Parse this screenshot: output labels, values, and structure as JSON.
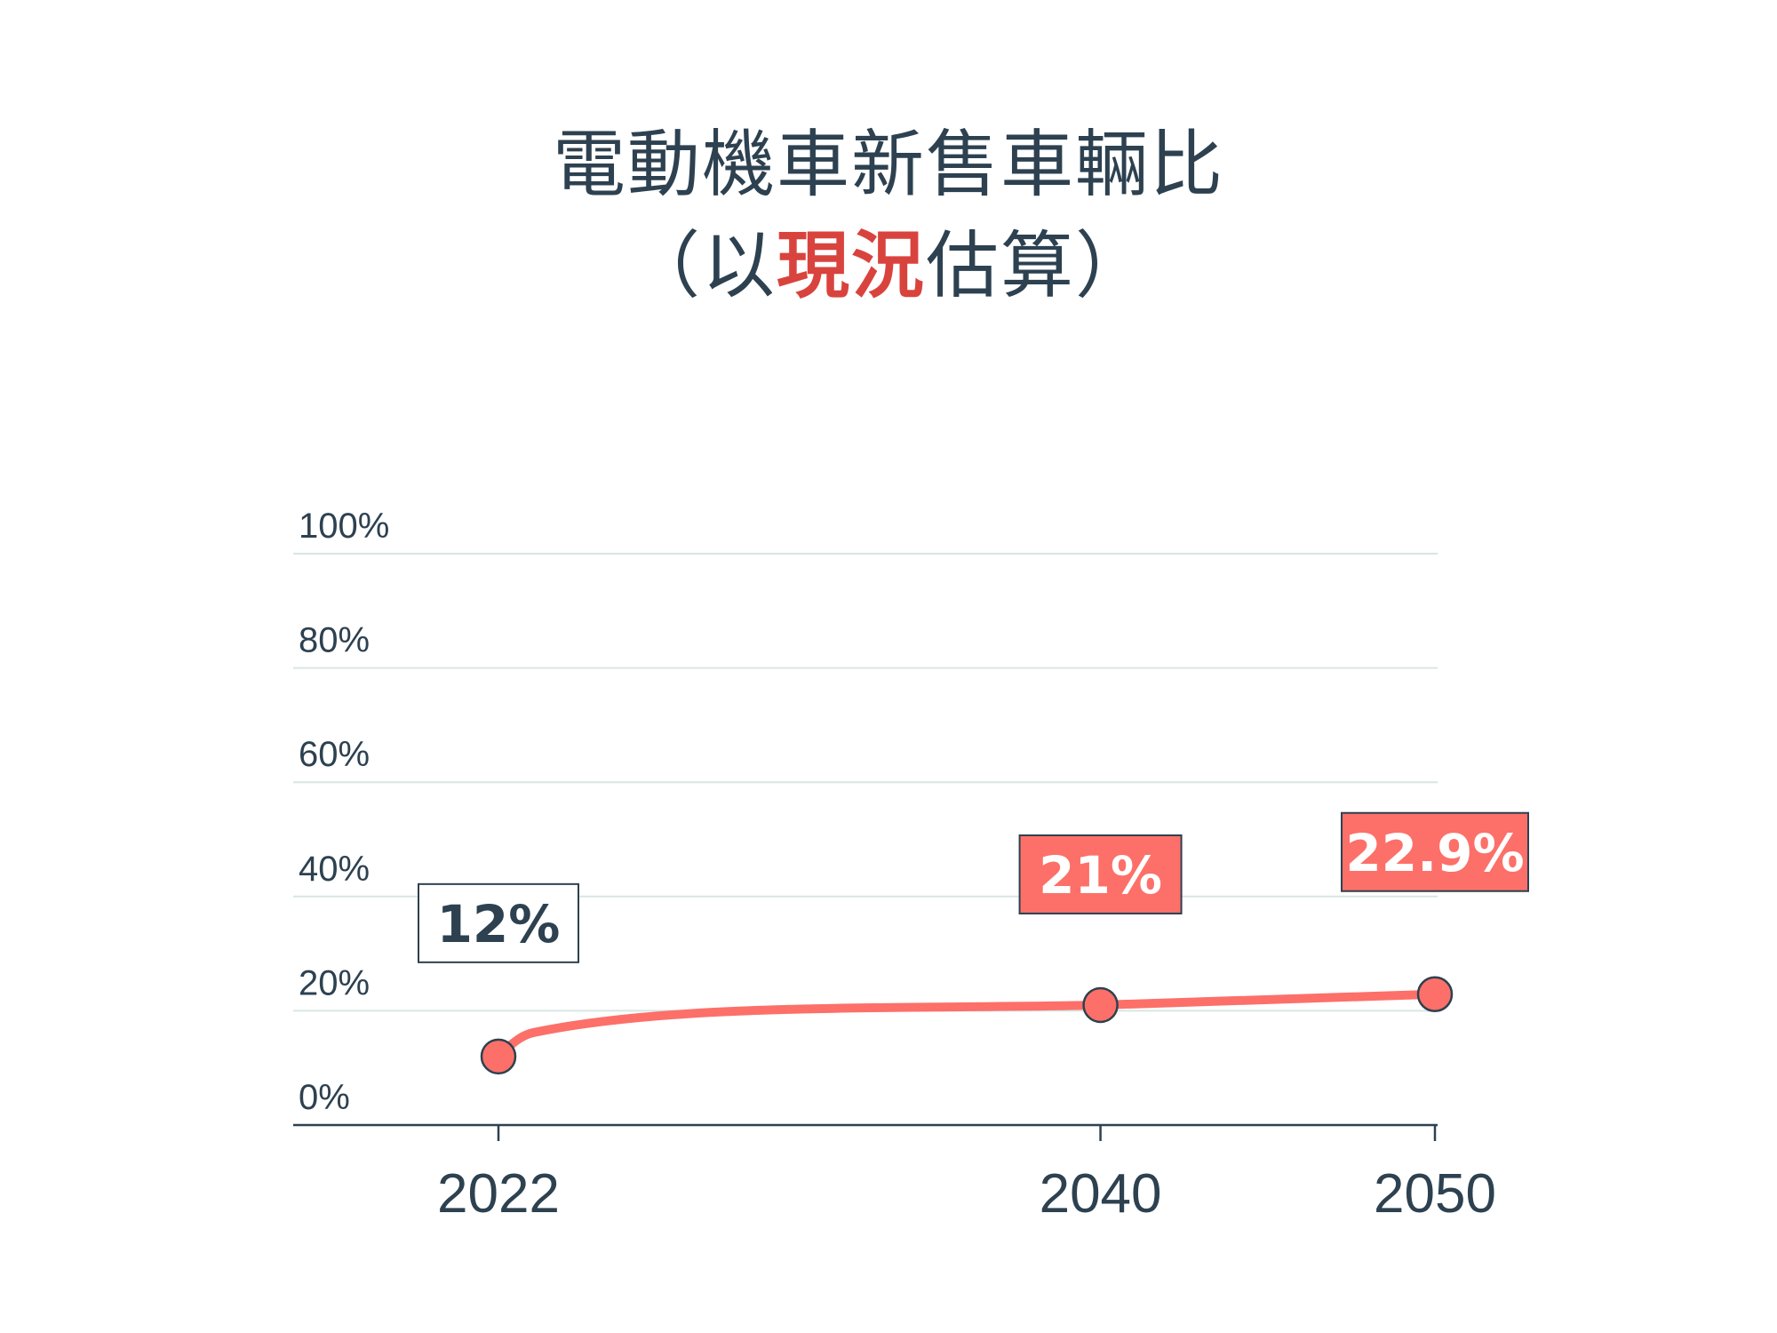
{
  "title": {
    "line1": "電動機車新售車輛比",
    "line2_open": "（以",
    "line2_highlight": "現況",
    "line2_close": "估算）"
  },
  "colors": {
    "text": "#2d4150",
    "line": "#fc7069",
    "highlight": "#d9433e",
    "grid": "#d7e6e4"
  },
  "chart_data": {
    "type": "line",
    "title": "電動機車新售車輛比（以現況估算）",
    "xlabel": "",
    "ylabel": "",
    "ylim": [
      0,
      100
    ],
    "y_ticks": [
      "0%",
      "20%",
      "40%",
      "60%",
      "80%",
      "100%"
    ],
    "x": [
      "2022",
      "2040",
      "2050"
    ],
    "x_numeric": [
      2022,
      2040,
      2050
    ],
    "values": [
      12,
      21,
      22.9
    ],
    "data_labels": [
      "12%",
      "21%",
      "22.9%"
    ],
    "grid": true,
    "legend": "none"
  }
}
